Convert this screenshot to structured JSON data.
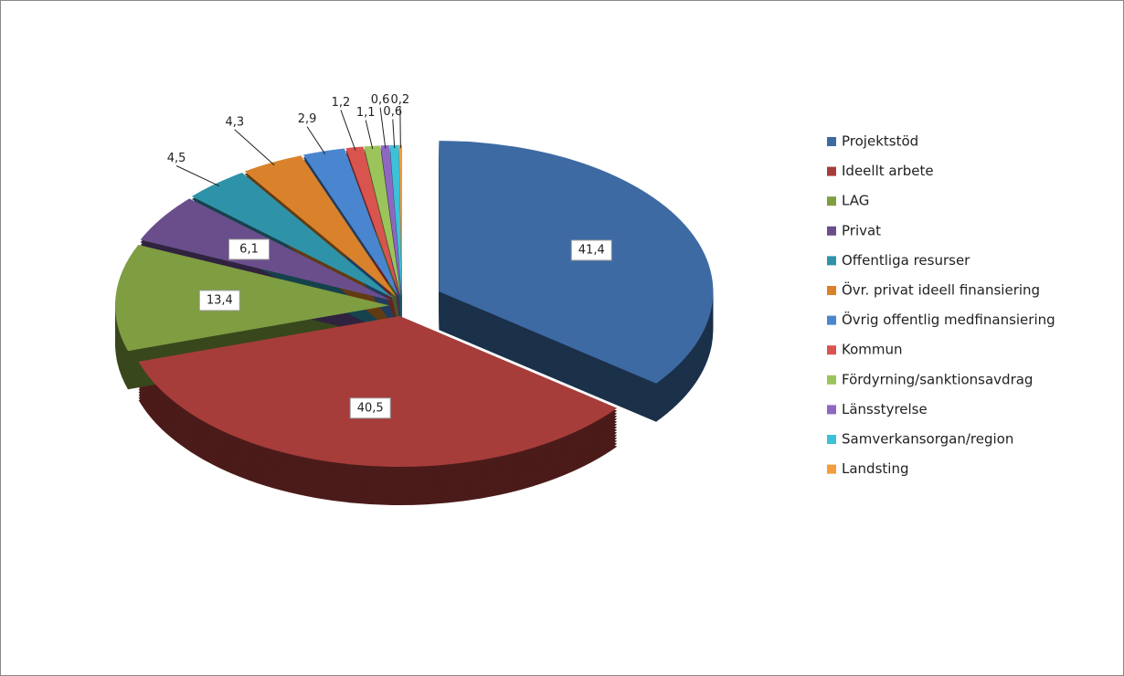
{
  "chart_data": {
    "type": "pie",
    "categories": [
      "Projektstöd",
      "Ideellt arbete",
      "LAG",
      "Privat",
      "Offentliga resurser",
      "Övr. privat ideell finansiering",
      "Övrig offentlig medfinansiering",
      "Kommun",
      "Fördyrning/sanktionsavdrag",
      "Länsstyrelse",
      "Samverkansorgan/region",
      "Landsting"
    ],
    "values": [
      41.4,
      40.5,
      13.4,
      6.1,
      4.5,
      4.3,
      2.9,
      1.2,
      1.1,
      0.6,
      0.6,
      0.2
    ],
    "value_labels": [
      "41,4",
      "40,5",
      "13,4",
      "6,1",
      "4,5",
      "4,3",
      "2,9",
      "1,2",
      "1,1",
      "0,6",
      "0,6",
      "0,2"
    ],
    "colors": [
      "#3d6aa3",
      "#a63d3a",
      "#7f9d41",
      "#6a4e8c",
      "#2e93a8",
      "#d9822b",
      "#4a86cf",
      "#d9534f",
      "#9bc45a",
      "#8e67c2",
      "#3ec1d8",
      "#f59c3c"
    ],
    "legend": "right"
  }
}
